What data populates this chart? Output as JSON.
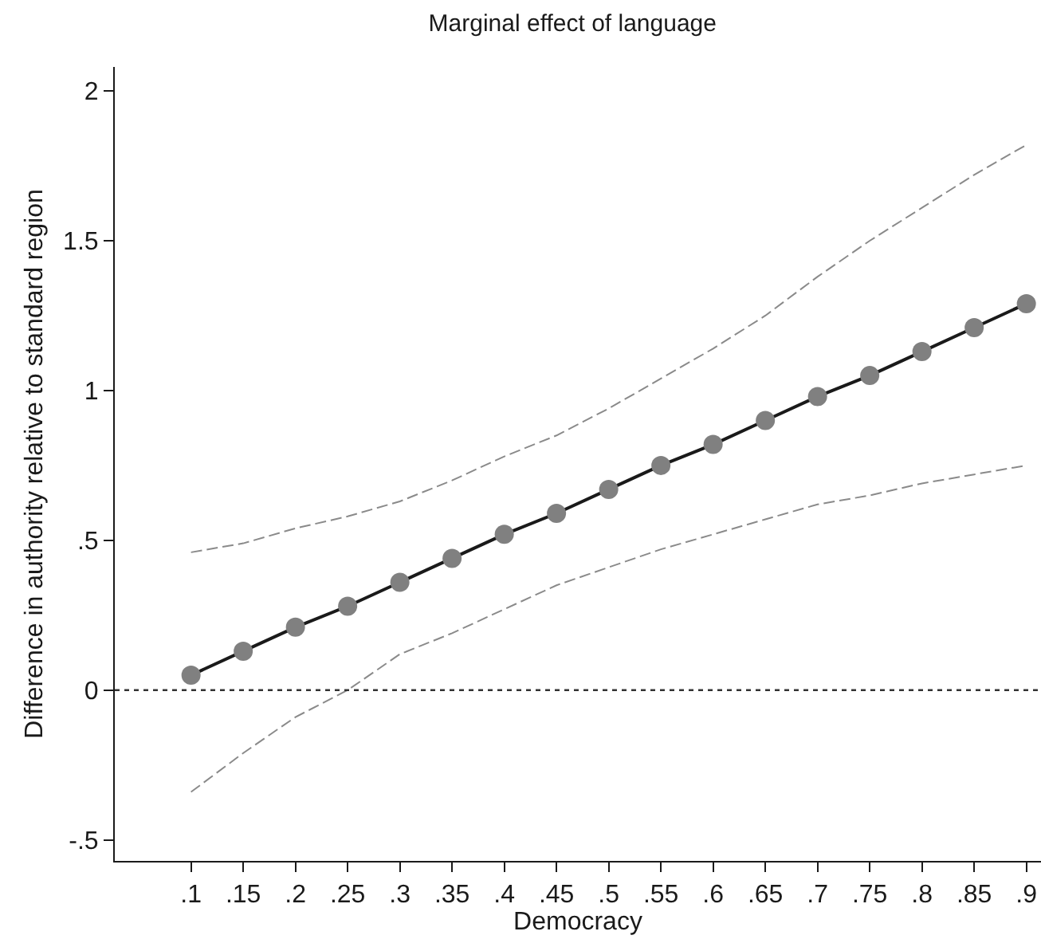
{
  "chart_data": {
    "type": "line",
    "title": "Marginal effect of language",
    "xlabel": "Democracy",
    "ylabel": "Difference in authority relative to standard region",
    "x": [
      0.1,
      0.15,
      0.2,
      0.25,
      0.3,
      0.35,
      0.4,
      0.45,
      0.5,
      0.55,
      0.6,
      0.65,
      0.7,
      0.75,
      0.8,
      0.85,
      0.9
    ],
    "series": [
      {
        "color": "#808080",
        "values": [
          0.05,
          0.13,
          0.21,
          0.28,
          0.36,
          0.44,
          0.52,
          0.59,
          0.67,
          0.75,
          0.82,
          0.9,
          0.98,
          1.05,
          1.13,
          1.21,
          1.29
        ]
      },
      {
        "color": "#8a8a8a",
        "line_style": "dashed",
        "marker": "none",
        "values": [
          0.46,
          0.49,
          0.54,
          0.58,
          0.63,
          0.7,
          0.78,
          0.85,
          0.94,
          1.04,
          1.14,
          1.25,
          1.38,
          1.5,
          1.61,
          1.72,
          1.82
        ]
      },
      {
        "color": "#8a8a8a",
        "line_style": "dashed",
        "marker": "none",
        "values": [
          -0.34,
          -0.21,
          -0.09,
          0.0,
          0.12,
          0.19,
          0.27,
          0.35,
          0.41,
          0.47,
          0.52,
          0.57,
          0.62,
          0.65,
          0.69,
          0.72,
          0.75
        ]
      }
    ],
    "xlim": [
      0.027,
      0.914
    ],
    "ylim": [
      -0.57,
      2.08
    ],
    "xticks": [
      {
        "value": 0.1,
        "label": ".1"
      },
      {
        "value": 0.15,
        "label": ".15"
      },
      {
        "value": 0.2,
        "label": ".2"
      },
      {
        "value": 0.25,
        "label": ".25"
      },
      {
        "value": 0.3,
        "label": ".3"
      },
      {
        "value": 0.35,
        "label": ".35"
      },
      {
        "value": 0.4,
        "label": ".4"
      },
      {
        "value": 0.45,
        "label": ".45"
      },
      {
        "value": 0.5,
        "label": ".5"
      },
      {
        "value": 0.55,
        "label": ".55"
      },
      {
        "value": 0.6,
        "label": ".6"
      },
      {
        "value": 0.65,
        "label": ".65"
      },
      {
        "value": 0.7,
        "label": ".7"
      },
      {
        "value": 0.75,
        "label": ".75"
      },
      {
        "value": 0.8,
        "label": ".8"
      },
      {
        "value": 0.85,
        "label": ".85"
      },
      {
        "value": 0.9,
        "label": ".9"
      }
    ],
    "yticks": [
      {
        "value": -0.5,
        "label": "-.5"
      },
      0,
      {
        "value": 0.5,
        "label": ".5"
      },
      1,
      1.5,
      2
    ],
    "ref_lines": [
      {
        "axis": "y",
        "value": 0,
        "color": "#333333",
        "line_style": "dashed"
      }
    ],
    "grid": false,
    "marker": "circle",
    "line_style": "solid"
  }
}
